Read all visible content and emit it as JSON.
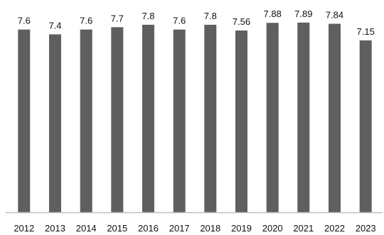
{
  "chart_data": {
    "type": "bar",
    "categories": [
      "2012",
      "2013",
      "2014",
      "2015",
      "2016",
      "2017",
      "2018",
      "2019",
      "2020",
      "2021",
      "2022",
      "2023"
    ],
    "values": [
      7.6,
      7.4,
      7.6,
      7.7,
      7.8,
      7.6,
      7.8,
      7.56,
      7.88,
      7.89,
      7.84,
      7.15
    ],
    "data_labels": [
      "7.6",
      "7.4",
      "7.6",
      "7.7",
      "7.8",
      "7.6",
      "7.8",
      "7.56",
      "7.88",
      "7.89",
      "7.84",
      "7.15"
    ],
    "title": "",
    "xlabel": "",
    "ylabel": "",
    "ylim": [
      0,
      8.18
    ],
    "grid": false,
    "legend": "none",
    "bar_color": "#5f5f5f",
    "axis_color": "#bfbfbf"
  }
}
